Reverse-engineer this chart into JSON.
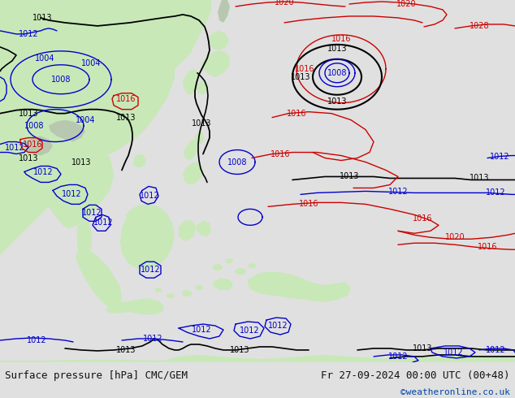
{
  "title_left": "Surface pressure [hPa] CMC/GEM",
  "title_right": "Fr 27-09-2024 00:00 UTC (00+48)",
  "credit": "©weatheronline.co.uk",
  "sea_color": "#d0d8e4",
  "land_color": "#c8e8b8",
  "grey_land": "#b8c8b0",
  "footer_bg": "#e0e0e0",
  "footer_text_color": "#111111",
  "credit_color": "#0044aa",
  "isobar_black": "#000000",
  "isobar_blue": "#0000cc",
  "isobar_red": "#cc0000",
  "label_fontsize": 7.0,
  "footer_fontsize": 9
}
